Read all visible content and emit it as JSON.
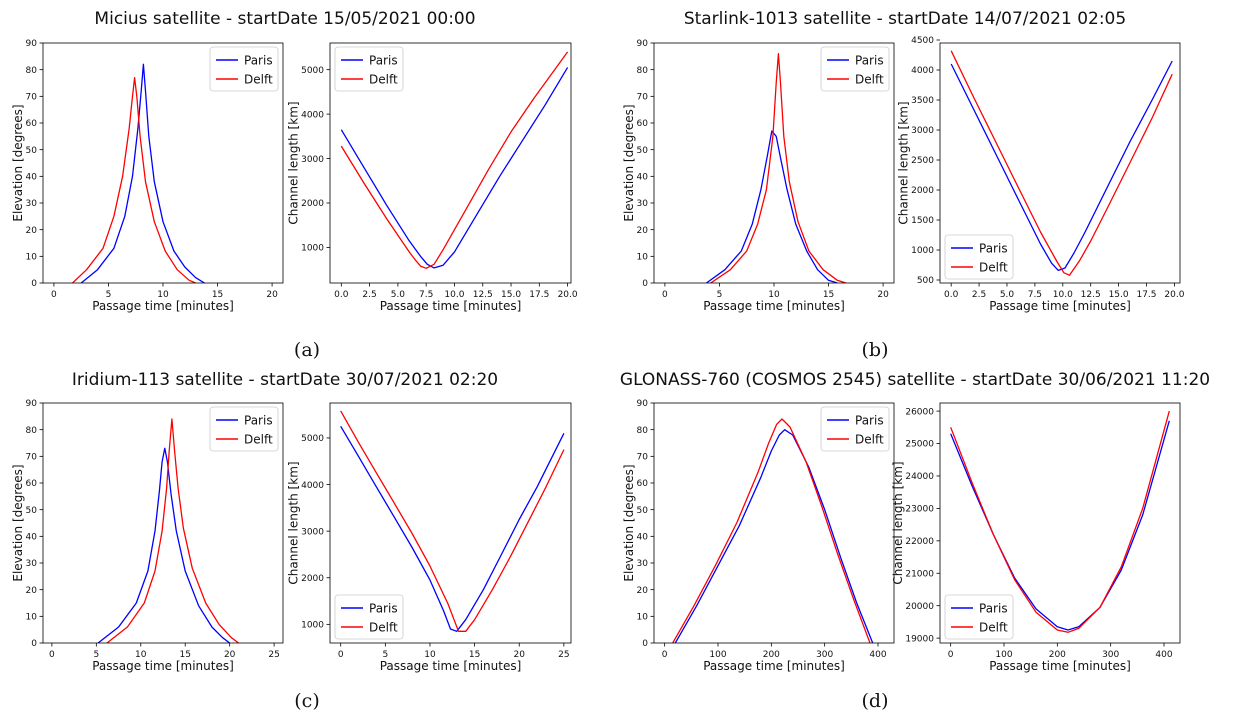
{
  "figure": {
    "panel_labels": [
      "(a)",
      "(b)",
      "(c)",
      "(d)"
    ]
  },
  "chart_data": [
    {
      "type": "line",
      "title": "Micius satellite - startDate 15/05/2021 00:00",
      "xlabel": "Passage time [minutes]",
      "ylabel": "Elevation [degrees]",
      "xlim": [
        -1,
        21
      ],
      "ylim": [
        0,
        90
      ],
      "xticks": [
        0,
        5,
        10,
        15,
        20
      ],
      "yticks": [
        0,
        10,
        20,
        30,
        40,
        50,
        60,
        70,
        80,
        90
      ],
      "legend": "top-right",
      "series": [
        {
          "name": "Paris",
          "color": "#0000ff",
          "x": [
            2.5,
            4.0,
            5.5,
            6.5,
            7.2,
            7.7,
            8.0,
            8.2,
            8.4,
            8.7,
            9.2,
            10.0,
            11.0,
            12.0,
            13.0,
            13.8
          ],
          "y": [
            0,
            5,
            13,
            25,
            40,
            58,
            72,
            82,
            72,
            55,
            38,
            23,
            12,
            6,
            2,
            0
          ]
        },
        {
          "name": "Delft",
          "color": "#ff0000",
          "x": [
            1.7,
            3.0,
            4.5,
            5.5,
            6.3,
            6.9,
            7.2,
            7.4,
            7.6,
            7.9,
            8.4,
            9.2,
            10.2,
            11.3,
            12.4,
            13.0
          ],
          "y": [
            0,
            5,
            13,
            25,
            40,
            58,
            70,
            77,
            70,
            55,
            38,
            23,
            12,
            5,
            1,
            0
          ]
        }
      ]
    },
    {
      "type": "line",
      "title": "",
      "xlabel": "Passage time [minutes]",
      "ylabel": "Channel length [km]",
      "xlim": [
        -1,
        20.3
      ],
      "ylim": [
        200,
        5600
      ],
      "xticks": [
        0.0,
        2.5,
        5.0,
        7.5,
        10.0,
        12.5,
        15.0,
        17.5,
        20.0
      ],
      "xtick_decimals": 1,
      "yticks": [
        1000,
        2000,
        3000,
        4000,
        5000
      ],
      "legend": "top-left",
      "series": [
        {
          "name": "Paris",
          "color": "#0000ff",
          "x": [
            0,
            2,
            4,
            6,
            7,
            7.6,
            8.2,
            9,
            10,
            12,
            14,
            16,
            18,
            20
          ],
          "y": [
            3650,
            2800,
            1950,
            1150,
            800,
            620,
            540,
            600,
            900,
            1750,
            2600,
            3400,
            4200,
            5050
          ]
        },
        {
          "name": "Delft",
          "color": "#ff0000",
          "x": [
            0,
            2,
            4,
            6,
            6.5,
            7.0,
            7.5,
            8.2,
            9,
            11,
            13,
            15,
            17,
            20
          ],
          "y": [
            3280,
            2450,
            1650,
            900,
            730,
            580,
            530,
            620,
            950,
            1850,
            2750,
            3600,
            4350,
            5400
          ]
        }
      ]
    },
    {
      "type": "line",
      "title": "Starlink-1013 satellite - startDate 14/07/2021 02:05",
      "xlabel": "Passage time [minutes]",
      "ylabel": "Elevation [degrees]",
      "xlim": [
        -1,
        21
      ],
      "ylim": [
        0,
        90
      ],
      "xticks": [
        0,
        5,
        10,
        15,
        20
      ],
      "yticks": [
        0,
        10,
        20,
        30,
        40,
        50,
        60,
        70,
        80,
        90
      ],
      "legend": "top-right",
      "series": [
        {
          "name": "Paris",
          "color": "#0000ff",
          "x": [
            3.8,
            5.5,
            7.0,
            8.0,
            8.8,
            9.4,
            9.8,
            10.2,
            10.6,
            11.2,
            12.0,
            13.0,
            14.0,
            15.0,
            15.8
          ],
          "y": [
            0,
            5,
            12,
            22,
            35,
            48,
            57,
            55,
            47,
            35,
            22,
            12,
            5,
            1,
            0
          ]
        },
        {
          "name": "Delft",
          "color": "#ff0000",
          "x": [
            4.2,
            6.0,
            7.5,
            8.5,
            9.3,
            9.9,
            10.2,
            10.4,
            10.6,
            10.9,
            11.4,
            12.2,
            13.2,
            14.5,
            15.8,
            16.6
          ],
          "y": [
            0,
            5,
            12,
            22,
            35,
            55,
            75,
            86,
            75,
            55,
            38,
            23,
            12,
            5,
            1,
            0
          ]
        }
      ]
    },
    {
      "type": "line",
      "title": "",
      "xlabel": "Passage time [minutes]",
      "ylabel": "Channel length [km]",
      "xlim": [
        -1,
        20.5
      ],
      "ylim": [
        450,
        4450
      ],
      "xticks": [
        0.0,
        2.5,
        5.0,
        7.5,
        10.0,
        12.5,
        15.0,
        17.5,
        20.0
      ],
      "xtick_decimals": 1,
      "yticks": [
        500,
        1000,
        1500,
        2000,
        2500,
        3000,
        3500,
        4000,
        4500
      ],
      "legend": "bottom-left",
      "series": [
        {
          "name": "Paris",
          "color": "#0000ff",
          "x": [
            0,
            2,
            4,
            6,
            8,
            9,
            9.6,
            10.2,
            11,
            12,
            14,
            16,
            18,
            19.8
          ],
          "y": [
            4100,
            3350,
            2600,
            1850,
            1100,
            780,
            660,
            700,
            950,
            1300,
            2050,
            2800,
            3500,
            4150
          ]
        },
        {
          "name": "Delft",
          "color": "#ff0000",
          "x": [
            0,
            2,
            4,
            6,
            8,
            9.5,
            10.1,
            10.6,
            11.5,
            12.5,
            14,
            16,
            18,
            19.8
          ],
          "y": [
            4320,
            3550,
            2800,
            2050,
            1300,
            800,
            620,
            580,
            820,
            1150,
            1700,
            2450,
            3200,
            3930
          ]
        }
      ]
    },
    {
      "type": "line",
      "title": "Iridium-113 satellite - startDate 30/07/2021 02:20",
      "xlabel": "Passage time [minutes]",
      "ylabel": "Elevation [degrees]",
      "xlim": [
        -1,
        26
      ],
      "ylim": [
        0,
        90
      ],
      "xticks": [
        0,
        5,
        10,
        15,
        20,
        25
      ],
      "yticks": [
        0,
        10,
        20,
        30,
        40,
        50,
        60,
        70,
        80,
        90
      ],
      "legend": "top-right",
      "series": [
        {
          "name": "Paris",
          "color": "#0000ff",
          "x": [
            5.2,
            7.5,
            9.5,
            10.8,
            11.6,
            12.1,
            12.4,
            12.7,
            13.0,
            13.4,
            14.0,
            15.0,
            16.5,
            18.0,
            19.2,
            20.0
          ],
          "y": [
            0,
            6,
            15,
            27,
            42,
            57,
            68,
            73,
            68,
            56,
            42,
            27,
            14,
            6,
            2,
            0
          ]
        },
        {
          "name": "Delft",
          "color": "#ff0000",
          "x": [
            6.2,
            8.5,
            10.4,
            11.6,
            12.4,
            12.9,
            13.2,
            13.5,
            13.8,
            14.2,
            14.8,
            15.8,
            17.3,
            18.8,
            20.2,
            21.0
          ],
          "y": [
            0,
            6,
            15,
            27,
            42,
            58,
            72,
            84,
            72,
            58,
            43,
            28,
            15,
            7,
            2,
            0
          ]
        }
      ]
    },
    {
      "type": "line",
      "title": "",
      "xlabel": "Passage time [minutes]",
      "ylabel": "Channel length [km]",
      "xlim": [
        -1.2,
        25.8
      ],
      "ylim": [
        600,
        5750
      ],
      "xticks": [
        0,
        5,
        10,
        15,
        20,
        25
      ],
      "yticks": [
        1000,
        2000,
        3000,
        4000,
        5000
      ],
      "legend": "bottom-left",
      "series": [
        {
          "name": "Paris",
          "color": "#0000ff",
          "x": [
            0,
            2,
            4,
            6,
            8,
            10,
            11.5,
            12.3,
            13,
            14,
            16,
            18,
            20,
            22,
            25
          ],
          "y": [
            5250,
            4600,
            3950,
            3300,
            2650,
            1950,
            1300,
            900,
            850,
            1100,
            1750,
            2500,
            3250,
            3950,
            5100
          ]
        },
        {
          "name": "Delft",
          "color": "#ff0000",
          "x": [
            0,
            2,
            4,
            6,
            8,
            10,
            12,
            13.2,
            14,
            15,
            17,
            19,
            21,
            23,
            25
          ],
          "y": [
            5580,
            4900,
            4250,
            3600,
            2950,
            2250,
            1450,
            850,
            850,
            1100,
            1750,
            2450,
            3200,
            3950,
            4750
          ]
        }
      ]
    },
    {
      "type": "line",
      "title": "GLONASS-760 (COSMOS 2545) satellite - startDate 30/06/2021 11:20",
      "xlabel": "Passage time [minutes]",
      "ylabel": "Elevation [degrees]",
      "xlim": [
        -20,
        430
      ],
      "ylim": [
        0,
        90
      ],
      "xticks": [
        0,
        100,
        200,
        300,
        400
      ],
      "yticks": [
        0,
        10,
        20,
        30,
        40,
        50,
        60,
        70,
        80,
        90
      ],
      "legend": "top-right",
      "series": [
        {
          "name": "Paris",
          "color": "#0000ff",
          "x": [
            20,
            60,
            100,
            140,
            180,
            200,
            215,
            225,
            240,
            270,
            300,
            330,
            360,
            390
          ],
          "y": [
            0,
            14,
            29,
            44,
            62,
            72,
            78,
            80,
            78,
            66,
            50,
            32,
            15,
            0
          ]
        },
        {
          "name": "Delft",
          "color": "#ff0000",
          "x": [
            15,
            55,
            95,
            135,
            175,
            195,
            210,
            220,
            235,
            265,
            295,
            325,
            355,
            385
          ],
          "y": [
            0,
            14,
            29,
            45,
            64,
            75,
            82,
            84,
            81,
            68,
            51,
            33,
            16,
            0
          ]
        }
      ]
    },
    {
      "type": "line",
      "title": "",
      "xlabel": "Passage time [minutes]",
      "ylabel": "Channel length [km]",
      "xlim": [
        -20,
        430
      ],
      "ylim": [
        18850,
        26250
      ],
      "xticks": [
        0,
        100,
        200,
        300,
        400
      ],
      "yticks": [
        19000,
        20000,
        21000,
        22000,
        23000,
        24000,
        25000,
        26000
      ],
      "legend": "bottom-left",
      "series": [
        {
          "name": "Paris",
          "color": "#0000ff",
          "x": [
            0,
            40,
            80,
            120,
            160,
            200,
            220,
            240,
            280,
            320,
            360,
            410
          ],
          "y": [
            25300,
            23700,
            22200,
            20850,
            19900,
            19350,
            19250,
            19350,
            19950,
            21100,
            22800,
            25700
          ]
        },
        {
          "name": "Delft",
          "color": "#ff0000",
          "x": [
            0,
            40,
            80,
            120,
            160,
            200,
            220,
            240,
            280,
            320,
            360,
            410
          ],
          "y": [
            25500,
            23800,
            22200,
            20800,
            19800,
            19250,
            19180,
            19300,
            19950,
            21200,
            23000,
            26000
          ]
        }
      ]
    }
  ]
}
